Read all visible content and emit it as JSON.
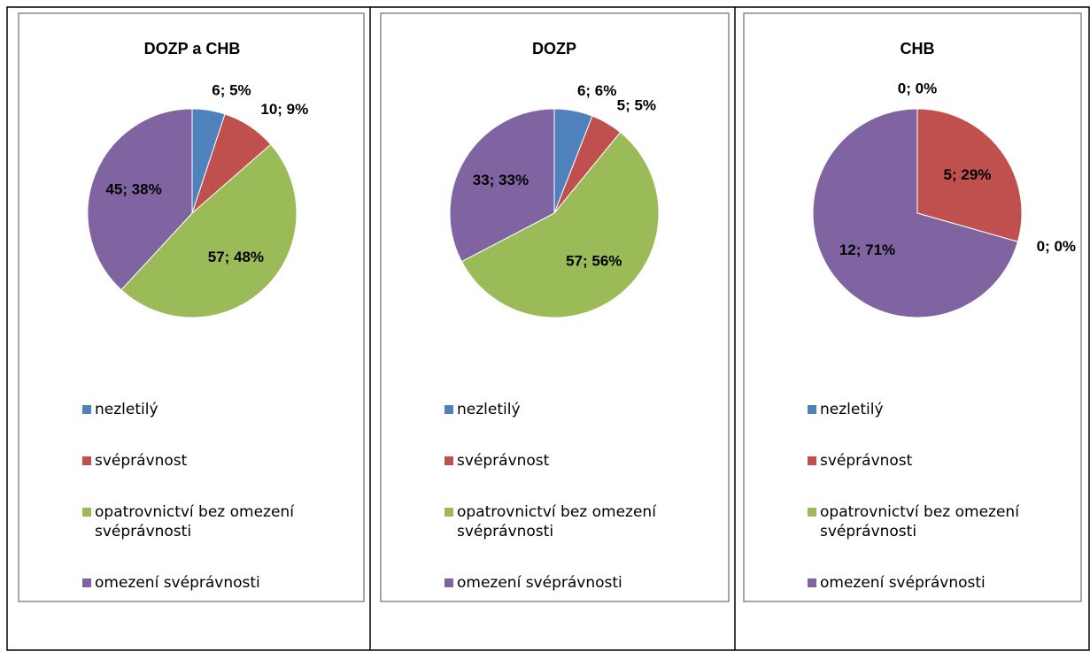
{
  "chart_data": [
    {
      "type": "pie",
      "title": "DOZP a CHB",
      "categories": [
        "nezletilý",
        "svéprávnost",
        "opatrovnictví bez omezení svéprávnosti",
        "omezení svéprávnosti"
      ],
      "values": [
        6,
        10,
        57,
        45
      ],
      "value_labels": [
        "6; 5%",
        "10; 9%",
        "57; 48%",
        "45; 38%"
      ],
      "colors": [
        "#4f81bd",
        "#c0504d",
        "#9bbb59",
        "#8064a2"
      ]
    },
    {
      "type": "pie",
      "title": "DOZP",
      "categories": [
        "nezletilý",
        "svéprávnost",
        "opatrovnictví bez omezení svéprávnosti",
        "omezení svéprávnosti"
      ],
      "values": [
        6,
        5,
        57,
        33
      ],
      "value_labels": [
        "6; 6%",
        "5; 5%",
        "57; 56%",
        "33; 33%"
      ],
      "colors": [
        "#4f81bd",
        "#c0504d",
        "#9bbb59",
        "#8064a2"
      ]
    },
    {
      "type": "pie",
      "title": "CHB",
      "categories": [
        "nezletilý",
        "svéprávnost",
        "opatrovnictví bez omezení svéprávnosti",
        "omezení svéprávnosti"
      ],
      "values": [
        0,
        5,
        0,
        12
      ],
      "value_labels": [
        "0; 0%",
        "5; 29%",
        "0; 0%",
        "12; 71%"
      ],
      "colors": [
        "#4f81bd",
        "#c0504d",
        "#9bbb59",
        "#8064a2"
      ]
    }
  ]
}
